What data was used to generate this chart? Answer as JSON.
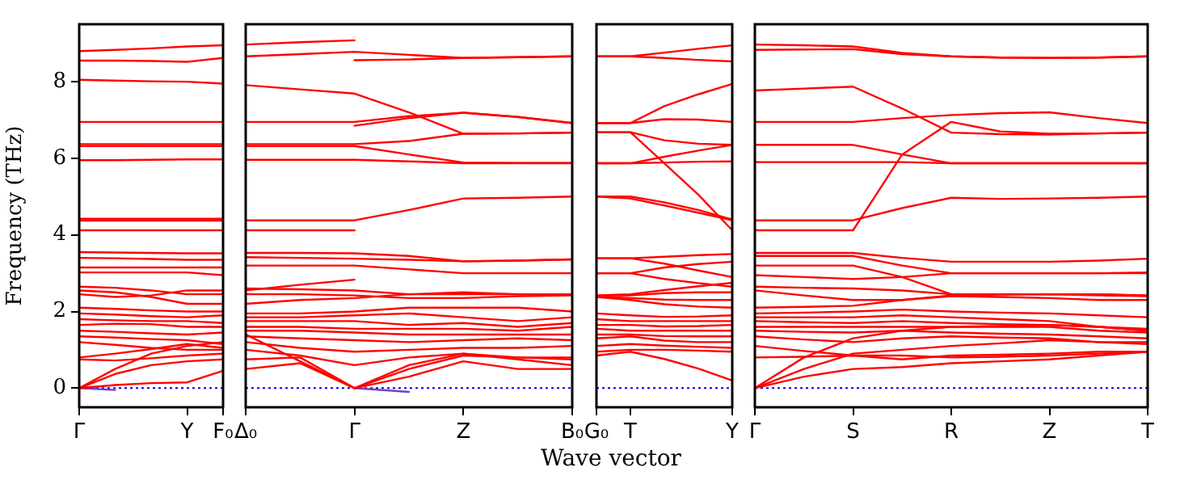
{
  "chart_data": [
    {
      "type": "line",
      "ylabel": "Frequency (THz)",
      "categories": [
        "Γ",
        null,
        null,
        "Y",
        "F₀"
      ],
      "ylim": [
        -0.5,
        9.5
      ],
      "yticks": [
        0,
        2,
        4,
        6,
        8
      ],
      "grid": false,
      "legend": false,
      "marker": "none",
      "line_style": "solid",
      "ref_lines": [
        {
          "axis": "y",
          "value": 0,
          "color": "#0000ff",
          "line_style": "dotted"
        }
      ],
      "series": [
        {
          "color": "#ff0000",
          "values": [
            8.8,
            8.83,
            8.87,
            8.92,
            8.95
          ]
        },
        {
          "color": "#ff0000",
          "values": [
            8.55,
            8.55,
            8.54,
            8.52,
            8.62
          ]
        },
        {
          "color": "#ff0000",
          "values": [
            8.05,
            8.03,
            8.01,
            8.0,
            7.95
          ]
        },
        {
          "color": "#ff0000",
          "values": [
            6.95,
            6.95,
            6.95,
            6.95,
            6.95
          ]
        },
        {
          "color": "#ff0000",
          "values": [
            6.37,
            6.37,
            6.37,
            6.37,
            6.37
          ]
        },
        {
          "color": "#ff0000",
          "values": [
            6.32,
            6.32,
            6.32,
            6.32,
            6.32
          ]
        },
        {
          "color": "#ff0000",
          "values": [
            5.95,
            5.95,
            5.96,
            5.97,
            5.97
          ]
        },
        {
          "color": "#ff0000",
          "values": [
            4.42,
            4.42,
            4.42,
            4.42,
            4.42
          ]
        },
        {
          "color": "#ff0000",
          "values": [
            4.37,
            4.37,
            4.37,
            4.37,
            4.37
          ]
        },
        {
          "color": "#ff0000",
          "values": [
            4.12,
            4.12,
            4.12,
            4.12,
            4.12
          ]
        },
        {
          "color": "#ff0000",
          "values": [
            3.55,
            3.54,
            3.53,
            3.52,
            3.52
          ]
        },
        {
          "color": "#ff0000",
          "values": [
            3.4,
            3.39,
            3.37,
            3.35,
            3.35
          ]
        },
        {
          "color": "#ff0000",
          "values": [
            3.15,
            3.15,
            3.15,
            3.15,
            3.15
          ]
        },
        {
          "color": "#ff0000",
          "values": [
            3.02,
            3.02,
            3.02,
            3.02,
            2.95
          ]
        },
        {
          "color": "#ff0000",
          "values": [
            2.65,
            2.62,
            2.55,
            2.45,
            2.45
          ]
        },
        {
          "color": "#ff0000",
          "values": [
            2.55,
            2.5,
            2.38,
            2.2,
            2.2
          ]
        },
        {
          "color": "#ff0000",
          "values": [
            2.45,
            2.38,
            2.42,
            2.55,
            2.55
          ]
        },
        {
          "color": "#ff0000",
          "values": [
            2.1,
            2.07,
            2.03,
            2.0,
            2.0
          ]
        },
        {
          "color": "#ff0000",
          "values": [
            1.95,
            1.92,
            1.88,
            1.85,
            1.9
          ]
        },
        {
          "color": "#ff0000",
          "values": [
            1.8,
            1.77,
            1.75,
            1.75,
            1.7
          ]
        },
        {
          "color": "#ff0000",
          "values": [
            1.65,
            1.68,
            1.67,
            1.6,
            1.6
          ]
        },
        {
          "color": "#ff0000",
          "values": [
            1.5,
            1.47,
            1.43,
            1.4,
            1.45
          ]
        },
        {
          "color": "#ff0000",
          "values": [
            1.35,
            1.32,
            1.28,
            1.25,
            1.15
          ]
        },
        {
          "color": "#ff0000",
          "values": [
            1.2,
            1.13,
            1.05,
            1.0,
            1.0
          ]
        },
        {
          "color": "#ff0000",
          "values": [
            0.8,
            0.9,
            1.02,
            1.15,
            1.05
          ]
        },
        {
          "color": "#ff0000",
          "values": [
            0.75,
            0.72,
            0.78,
            0.85,
            0.9
          ]
        },
        {
          "color": "#ff0000",
          "values": [
            0,
            0.5,
            0.9,
            1.1,
            1.2
          ]
        },
        {
          "color": "#ff0000",
          "values": [
            0,
            0.37,
            0.6,
            0.7,
            0.75
          ]
        },
        {
          "color": "#ff0000",
          "values": [
            0,
            0.08,
            0.13,
            0.15,
            0.45
          ]
        },
        {
          "color": "#7a3fbf",
          "values": [
            0,
            -0.05,
            null,
            null,
            null
          ]
        }
      ]
    },
    {
      "type": "line",
      "categories": [
        "Δ₀",
        null,
        "Γ",
        null,
        "Z",
        null,
        "B₀"
      ],
      "ylim": [
        -0.5,
        9.5
      ],
      "tick_labels": "x",
      "grid": false,
      "legend": false,
      "marker": "none",
      "line_style": "solid",
      "ref_lines": [
        {
          "axis": "y",
          "value": 0,
          "color": "#0000ff",
          "line_style": "dotted"
        }
      ],
      "series": [
        {
          "color": "#ff0000",
          "values": [
            8.97,
            9.03,
            9.08,
            null,
            null,
            null,
            null
          ]
        },
        {
          "color": "#ff0000",
          "values": [
            8.66,
            8.72,
            8.78,
            8.7,
            8.62,
            8.64,
            8.66
          ]
        },
        {
          "color": "#ff0000",
          "values": [
            null,
            null,
            8.56,
            8.58,
            8.62,
            8.64,
            8.66
          ]
        },
        {
          "color": "#ff0000",
          "values": [
            7.91,
            7.8,
            7.69,
            7.2,
            6.64,
            6.65,
            6.67
          ]
        },
        {
          "color": "#ff0000",
          "values": [
            6.95,
            6.95,
            6.95,
            7.1,
            7.19,
            7.08,
            6.92
          ]
        },
        {
          "color": "#ff0000",
          "values": [
            null,
            null,
            6.85,
            7.05,
            7.19,
            7.08,
            6.92
          ]
        },
        {
          "color": "#ff0000",
          "values": [
            6.37,
            6.37,
            6.37,
            6.45,
            6.64,
            6.65,
            6.67
          ]
        },
        {
          "color": "#ff0000",
          "values": [
            6.32,
            6.32,
            6.32,
            6.1,
            5.89,
            5.88,
            5.88
          ]
        },
        {
          "color": "#ff0000",
          "values": [
            5.96,
            5.96,
            5.96,
            5.92,
            5.87,
            5.87,
            5.87
          ]
        },
        {
          "color": "#ff0000",
          "values": [
            4.38,
            4.38,
            4.38,
            4.65,
            4.95,
            4.97,
            5.0
          ]
        },
        {
          "color": "#ff0000",
          "values": [
            4.12,
            4.12,
            4.12,
            null,
            null,
            null,
            null
          ]
        },
        {
          "color": "#ff0000",
          "values": [
            3.53,
            3.53,
            3.52,
            3.45,
            3.31,
            3.33,
            3.36
          ]
        },
        {
          "color": "#ff0000",
          "values": [
            3.42,
            3.4,
            3.38,
            3.35,
            3.31,
            3.33,
            3.36
          ]
        },
        {
          "color": "#ff0000",
          "values": [
            3.2,
            3.2,
            3.2,
            3.1,
            3.0,
            3.0,
            3.0
          ]
        },
        {
          "color": "#ff0000",
          "values": [
            2.55,
            2.7,
            2.83,
            null,
            null,
            null,
            null
          ]
        },
        {
          "color": "#ff0000",
          "values": [
            2.6,
            2.58,
            2.55,
            2.45,
            2.45,
            2.45,
            2.45
          ]
        },
        {
          "color": "#ff0000",
          "values": [
            2.45,
            2.45,
            2.42,
            2.35,
            2.35,
            2.4,
            2.42
          ]
        },
        {
          "color": "#ff0000",
          "values": [
            2.2,
            2.3,
            2.35,
            2.45,
            2.5,
            2.45,
            2.45
          ]
        },
        {
          "color": "#ff0000",
          "values": [
            1.95,
            1.95,
            2.0,
            2.1,
            2.1,
            2.1,
            2.0
          ]
        },
        {
          "color": "#ff0000",
          "values": [
            1.85,
            1.85,
            1.9,
            1.95,
            1.85,
            1.75,
            1.85
          ]
        },
        {
          "color": "#ff0000",
          "values": [
            1.75,
            1.75,
            1.75,
            1.65,
            1.7,
            1.6,
            1.7
          ]
        },
        {
          "color": "#ff0000",
          "values": [
            1.6,
            1.6,
            1.55,
            1.55,
            1.55,
            1.5,
            1.6
          ]
        },
        {
          "color": "#ff0000",
          "values": [
            1.5,
            1.5,
            1.45,
            1.4,
            1.4,
            1.4,
            1.4
          ]
        },
        {
          "color": "#ff0000",
          "values": [
            1.35,
            1.3,
            1.25,
            1.2,
            1.25,
            1.3,
            1.25
          ]
        },
        {
          "color": "#ff0000",
          "values": [
            1.2,
            1.05,
            0.95,
            1.0,
            1.05,
            1.05,
            1.1
          ]
        },
        {
          "color": "#ff0000",
          "values": [
            1.0,
            0.85,
            0.6,
            0.8,
            0.9,
            0.75,
            0.6
          ]
        },
        {
          "color": "#ff0000",
          "values": [
            0.75,
            0.8,
            0,
            0.6,
            0.9,
            0.8,
            0.8
          ]
        },
        {
          "color": "#ff0000",
          "values": [
            0.5,
            0.65,
            0,
            0.3,
            0.7,
            0.5,
            0.5
          ]
        },
        {
          "color": "#ff0000",
          "values": [
            1.4,
            0.7,
            0,
            0.5,
            0.85,
            0.8,
            0.75
          ]
        },
        {
          "color": "#7a3fbf",
          "values": [
            null,
            null,
            0,
            -0.1,
            null,
            null,
            null
          ]
        }
      ]
    },
    {
      "type": "line",
      "xlabel": "Wave vector",
      "categories": [
        "G₀",
        "T",
        null,
        null,
        "Y"
      ],
      "ylim": [
        -0.5,
        9.5
      ],
      "tick_labels": "x",
      "grid": false,
      "legend": false,
      "marker": "none",
      "line_style": "solid",
      "ref_lines": [
        {
          "axis": "y",
          "value": 0,
          "color": "#0000ff",
          "line_style": "dotted"
        }
      ],
      "series": [
        {
          "color": "#ff0000",
          "values": [
            8.66,
            8.66,
            8.76,
            8.86,
            8.95
          ]
        },
        {
          "color": "#ff0000",
          "values": [
            8.66,
            8.66,
            8.62,
            8.57,
            8.53
          ]
        },
        {
          "color": "#ff0000",
          "values": [
            6.92,
            6.92,
            7.36,
            7.67,
            7.94
          ]
        },
        {
          "color": "#ff0000",
          "values": [
            6.92,
            6.92,
            7.02,
            7.01,
            6.95
          ]
        },
        {
          "color": "#ff0000",
          "values": [
            6.68,
            6.68,
            6.47,
            6.38,
            6.35
          ]
        },
        {
          "color": "#ff0000",
          "values": [
            6.68,
            6.68,
            5.87,
            5.05,
            4.12
          ]
        },
        {
          "color": "#ff0000",
          "values": [
            5.87,
            5.87,
            5.89,
            5.91,
            5.92
          ]
        },
        {
          "color": "#ff0000",
          "values": [
            5.87,
            5.87,
            6.04,
            6.2,
            6.35
          ]
        },
        {
          "color": "#ff0000",
          "values": [
            5.0,
            5.0,
            4.85,
            4.65,
            4.4
          ]
        },
        {
          "color": "#ff0000",
          "values": [
            5.0,
            4.95,
            4.77,
            4.58,
            4.38
          ]
        },
        {
          "color": "#ff0000",
          "values": [
            3.39,
            3.39,
            3.43,
            3.47,
            3.5
          ]
        },
        {
          "color": "#ff0000",
          "values": [
            3.39,
            3.39,
            3.25,
            3.07,
            2.9
          ]
        },
        {
          "color": "#ff0000",
          "values": [
            3.0,
            3.0,
            3.15,
            3.24,
            3.3
          ]
        },
        {
          "color": "#ff0000",
          "values": [
            3.0,
            3.0,
            2.85,
            2.74,
            2.65
          ]
        },
        {
          "color": "#ff0000",
          "values": [
            2.42,
            2.45,
            2.56,
            2.66,
            2.75
          ]
        },
        {
          "color": "#ff0000",
          "values": [
            2.42,
            2.42,
            2.48,
            2.5,
            2.5
          ]
        },
        {
          "color": "#ff0000",
          "values": [
            2.4,
            2.35,
            2.31,
            2.3,
            2.3
          ]
        },
        {
          "color": "#ff0000",
          "values": [
            2.38,
            2.3,
            2.19,
            2.13,
            2.1
          ]
        },
        {
          "color": "#ff0000",
          "values": [
            1.95,
            1.9,
            1.86,
            1.87,
            1.9
          ]
        },
        {
          "color": "#ff0000",
          "values": [
            1.8,
            1.75,
            1.75,
            1.75,
            1.75
          ]
        },
        {
          "color": "#ff0000",
          "values": [
            1.65,
            1.65,
            1.61,
            1.62,
            1.65
          ]
        },
        {
          "color": "#ff0000",
          "values": [
            1.55,
            1.5,
            1.5,
            1.5,
            1.5
          ]
        },
        {
          "color": "#ff0000",
          "values": [
            1.4,
            1.4,
            1.36,
            1.35,
            1.35
          ]
        },
        {
          "color": "#ff0000",
          "values": [
            1.3,
            1.35,
            1.24,
            1.2,
            1.2
          ]
        },
        {
          "color": "#ff0000",
          "values": [
            1.1,
            1.15,
            1.11,
            1.08,
            1.05
          ]
        },
        {
          "color": "#ff0000",
          "values": [
            0.95,
            1.0,
            1.0,
            0.98,
            0.95
          ]
        },
        {
          "color": "#ff0000",
          "values": [
            0.85,
            0.95,
            0.76,
            0.51,
            0.2
          ]
        }
      ]
    },
    {
      "type": "line",
      "categories": [
        "Γ",
        null,
        "S",
        null,
        "R",
        null,
        "Z",
        null,
        "T"
      ],
      "ylim": [
        -0.5,
        9.5
      ],
      "tick_labels": "x",
      "grid": false,
      "legend": false,
      "marker": "none",
      "line_style": "solid",
      "ref_lines": [
        {
          "axis": "y",
          "value": 0,
          "color": "#0000ff",
          "line_style": "dotted"
        }
      ],
      "series": [
        {
          "color": "#ff0000",
          "values": [
            8.97,
            8.95,
            8.92,
            8.75,
            8.66,
            8.63,
            8.62,
            8.63,
            8.66
          ]
        },
        {
          "color": "#ff0000",
          "values": [
            8.83,
            8.84,
            8.85,
            8.72,
            8.66,
            8.63,
            8.62,
            8.63,
            8.66
          ]
        },
        {
          "color": "#ff0000",
          "values": [
            7.77,
            7.82,
            7.87,
            7.3,
            6.67,
            6.63,
            6.62,
            6.65,
            6.67
          ]
        },
        {
          "color": "#ff0000",
          "values": [
            6.95,
            6.95,
            6.95,
            7.05,
            7.13,
            7.18,
            7.2,
            7.05,
            6.92
          ]
        },
        {
          "color": "#ff0000",
          "values": [
            6.35,
            6.35,
            6.35,
            6.1,
            5.87,
            5.87,
            5.87,
            5.87,
            5.87
          ]
        },
        {
          "color": "#ff0000",
          "values": [
            5.9,
            5.9,
            5.9,
            5.9,
            5.87,
            5.87,
            5.87,
            5.87,
            5.87
          ]
        },
        {
          "color": "#ff0000",
          "values": [
            4.38,
            4.38,
            4.38,
            4.7,
            4.97,
            4.94,
            4.95,
            4.97,
            5.0
          ]
        },
        {
          "color": "#ff0000",
          "values": [
            4.12,
            4.12,
            4.12,
            6.1,
            6.95,
            6.7,
            6.64,
            6.65,
            6.67
          ]
        },
        {
          "color": "#ff0000",
          "values": [
            3.53,
            3.53,
            3.53,
            3.4,
            3.3,
            3.3,
            3.3,
            3.33,
            3.38
          ]
        },
        {
          "color": "#ff0000",
          "values": [
            3.45,
            3.45,
            3.45,
            3.2,
            3.0,
            3.0,
            3.0,
            3.0,
            3.02
          ]
        },
        {
          "color": "#ff0000",
          "values": [
            3.2,
            3.2,
            3.2,
            2.9,
            2.45,
            2.45,
            2.45,
            2.45,
            2.42
          ]
        },
        {
          "color": "#ff0000",
          "values": [
            2.95,
            2.9,
            2.85,
            2.9,
            3.0,
            3.0,
            3.0,
            3.0,
            3.0
          ]
        },
        {
          "color": "#ff0000",
          "values": [
            2.65,
            2.62,
            2.6,
            2.55,
            2.45,
            2.45,
            2.45,
            2.45,
            2.42
          ]
        },
        {
          "color": "#ff0000",
          "values": [
            2.55,
            2.42,
            2.3,
            2.3,
            2.42,
            2.44,
            2.45,
            2.42,
            2.4
          ]
        },
        {
          "color": "#ff0000",
          "values": [
            2.1,
            2.12,
            2.15,
            2.3,
            2.4,
            2.38,
            2.35,
            2.3,
            2.3
          ]
        },
        {
          "color": "#ff0000",
          "values": [
            1.95,
            1.97,
            2.0,
            2.05,
            2.0,
            1.97,
            1.95,
            1.9,
            1.85
          ]
        },
        {
          "color": "#ff0000",
          "values": [
            1.85,
            1.85,
            1.85,
            1.9,
            1.85,
            1.8,
            1.75,
            1.6,
            1.55
          ]
        },
        {
          "color": "#ff0000",
          "values": [
            1.75,
            1.72,
            1.7,
            1.75,
            1.7,
            1.67,
            1.65,
            1.6,
            1.5
          ]
        },
        {
          "color": "#ff0000",
          "values": [
            1.6,
            1.6,
            1.6,
            1.6,
            1.6,
            1.6,
            1.6,
            1.5,
            1.45
          ]
        },
        {
          "color": "#ff0000",
          "values": [
            1.5,
            1.47,
            1.45,
            1.5,
            1.45,
            1.42,
            1.4,
            1.35,
            1.3
          ]
        },
        {
          "color": "#ff0000",
          "values": [
            1.35,
            1.27,
            1.2,
            1.3,
            1.35,
            1.32,
            1.3,
            1.2,
            1.2
          ]
        },
        {
          "color": "#ff0000",
          "values": [
            1.1,
            0.97,
            0.85,
            0.85,
            0.8,
            0.82,
            0.85,
            0.9,
            0.95
          ]
        },
        {
          "color": "#ff0000",
          "values": [
            0.8,
            0.82,
            0.85,
            0.75,
            0.85,
            0.87,
            0.9,
            0.95,
            0.95
          ]
        },
        {
          "color": "#ff0000",
          "values": [
            0,
            0.8,
            1.3,
            1.5,
            1.6,
            1.62,
            1.65,
            1.6,
            1.5
          ]
        },
        {
          "color": "#ff0000",
          "values": [
            0,
            0.5,
            0.9,
            1.0,
            1.1,
            1.17,
            1.25,
            1.2,
            1.15
          ]
        },
        {
          "color": "#ff0000",
          "values": [
            0,
            0.3,
            0.5,
            0.55,
            0.65,
            0.7,
            0.75,
            0.85,
            0.95
          ]
        }
      ]
    }
  ]
}
